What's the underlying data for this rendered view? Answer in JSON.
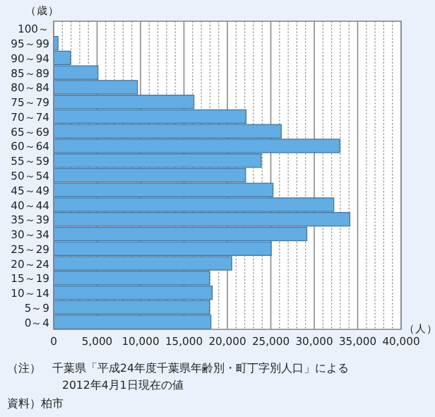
{
  "chart_data": {
    "type": "bar",
    "orientation": "horizontal",
    "ylabel": "（歳）",
    "xlabel": "（人）",
    "categories": [
      "100～",
      "95～99",
      "90～94",
      "85～89",
      "80～84",
      "75～79",
      "70～74",
      "65～69",
      "60～64",
      "55～59",
      "50～54",
      "45～49",
      "40～44",
      "35～39",
      "30～34",
      "25～29",
      "20～24",
      "15～19",
      "10～14",
      "5～9",
      "0～4"
    ],
    "values": [
      null,
      500,
      1950,
      5100,
      9650,
      16150,
      22150,
      26200,
      32950,
      23900,
      22100,
      25250,
      32250,
      34100,
      29150,
      25050,
      20500,
      17950,
      18250,
      17950,
      18100
    ],
    "color": "#62ade3",
    "xlim": [
      0,
      40000
    ],
    "xticks": [
      0,
      {
        "value": 1000,
        "label": null
      },
      {
        "value": 2000,
        "label": null
      },
      {
        "value": 3000,
        "label": null
      },
      {
        "value": 4000,
        "label": null
      },
      {
        "value": 5000,
        "label": "5,000"
      },
      {
        "value": 6000,
        "label": null
      },
      {
        "value": 7000,
        "label": null
      },
      {
        "value": 8000,
        "label": null
      },
      {
        "value": 9000,
        "label": null
      },
      {
        "value": 10000,
        "label": "10,000"
      },
      {
        "value": 11000,
        "label": null
      },
      {
        "value": 12000,
        "label": null
      },
      {
        "value": 13000,
        "label": null
      },
      {
        "value": 14000,
        "label": null
      },
      {
        "value": 15000,
        "label": "15,000"
      },
      {
        "value": 16000,
        "label": null
      },
      {
        "value": 17000,
        "label": null
      },
      {
        "value": 18000,
        "label": null
      },
      {
        "value": 19000,
        "label": null
      },
      {
        "value": 20000,
        "label": "20,000"
      },
      {
        "value": 21000,
        "label": null
      },
      {
        "value": 22000,
        "label": null
      },
      {
        "value": 23000,
        "label": null
      },
      {
        "value": 24000,
        "label": null
      },
      {
        "value": 25000,
        "label": "25,000"
      },
      {
        "value": 26000,
        "label": null
      },
      {
        "value": 27000,
        "label": null
      },
      {
        "value": 28000,
        "label": null
      },
      {
        "value": 29000,
        "label": null
      },
      {
        "value": 30000,
        "label": "30,000"
      },
      {
        "value": 31000,
        "label": null
      },
      {
        "value": 32000,
        "label": null
      },
      {
        "value": 33000,
        "label": null
      },
      {
        "value": 34000,
        "label": null
      },
      {
        "value": 35000,
        "label": "35,000"
      },
      {
        "value": 36000,
        "label": null
      },
      {
        "value": 37000,
        "label": null
      },
      {
        "value": 38000,
        "label": null
      },
      {
        "value": 39000,
        "label": null
      },
      {
        "value": 40000,
        "label": "40,000"
      }
    ],
    "grid": "x",
    "annotations": [
      "（注）　千葉県「平成24年度千葉県年齢別・町丁字別人口」による",
      "2012年4月1日現在の値",
      "資料）柏市"
    ]
  }
}
